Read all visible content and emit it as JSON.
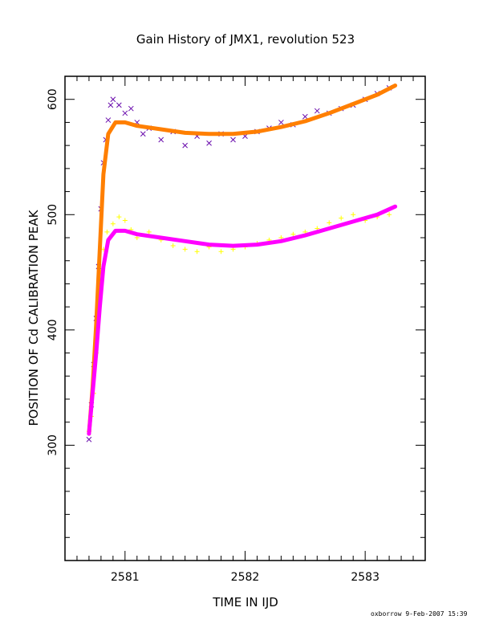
{
  "chart_data": {
    "type": "scatter",
    "title": "Gain History of JMX1, revolution 523",
    "xlabel": "TIME IN IJD",
    "ylabel": "POSITION OF Cd CALIBRATION PEAK",
    "xlim": [
      2580.5,
      2583.5
    ],
    "ylim": [
      200,
      620
    ],
    "xticks": [
      "2581",
      "2582",
      "2583"
    ],
    "yticks": [
      "300",
      "400",
      "500",
      "600"
    ],
    "grid": false,
    "legend": "none",
    "series": [
      {
        "marker": "x",
        "color": "#6a0dad",
        "points": [
          [
            2580.7,
            305
          ],
          [
            2580.72,
            335
          ],
          [
            2580.74,
            370
          ],
          [
            2580.76,
            410
          ],
          [
            2580.78,
            455
          ],
          [
            2580.8,
            505
          ],
          [
            2580.82,
            545
          ],
          [
            2580.84,
            565
          ],
          [
            2580.86,
            582
          ],
          [
            2580.88,
            595
          ],
          [
            2580.9,
            600
          ],
          [
            2580.95,
            595
          ],
          [
            2581.0,
            588
          ],
          [
            2581.05,
            592
          ],
          [
            2581.1,
            580
          ],
          [
            2581.15,
            570
          ],
          [
            2581.2,
            575
          ],
          [
            2581.3,
            565
          ],
          [
            2581.4,
            572
          ],
          [
            2581.5,
            560
          ],
          [
            2581.6,
            568
          ],
          [
            2581.7,
            562
          ],
          [
            2581.8,
            570
          ],
          [
            2581.9,
            565
          ],
          [
            2582.0,
            568
          ],
          [
            2582.1,
            572
          ],
          [
            2582.2,
            575
          ],
          [
            2582.3,
            580
          ],
          [
            2582.4,
            578
          ],
          [
            2582.5,
            585
          ],
          [
            2582.6,
            590
          ],
          [
            2582.7,
            588
          ],
          [
            2582.8,
            592
          ],
          [
            2582.9,
            595
          ],
          [
            2583.0,
            600
          ],
          [
            2583.1,
            605
          ],
          [
            2583.2,
            610
          ]
        ]
      },
      {
        "marker": "+",
        "color": "#ffff00",
        "points": [
          [
            2580.7,
            312
          ],
          [
            2580.72,
            325
          ],
          [
            2580.74,
            345
          ],
          [
            2580.76,
            380
          ],
          [
            2580.78,
            415
          ],
          [
            2580.8,
            450
          ],
          [
            2580.82,
            470
          ],
          [
            2580.85,
            485
          ],
          [
            2580.9,
            492
          ],
          [
            2580.95,
            498
          ],
          [
            2581.0,
            495
          ],
          [
            2581.05,
            487
          ],
          [
            2581.1,
            480
          ],
          [
            2581.2,
            485
          ],
          [
            2581.3,
            478
          ],
          [
            2581.4,
            473
          ],
          [
            2581.5,
            470
          ],
          [
            2581.6,
            468
          ],
          [
            2581.7,
            472
          ],
          [
            2581.8,
            468
          ],
          [
            2581.9,
            470
          ],
          [
            2582.0,
            472
          ],
          [
            2582.1,
            475
          ],
          [
            2582.2,
            478
          ],
          [
            2582.3,
            480
          ],
          [
            2582.4,
            483
          ],
          [
            2582.5,
            485
          ],
          [
            2582.6,
            488
          ],
          [
            2582.7,
            493
          ],
          [
            2582.8,
            497
          ],
          [
            2582.9,
            500
          ],
          [
            2583.0,
            495
          ],
          [
            2583.1,
            498
          ],
          [
            2583.2,
            500
          ]
        ]
      },
      {
        "marker": "line",
        "color": "#ff7f00",
        "points": [
          [
            2580.7,
            310
          ],
          [
            2580.73,
            350
          ],
          [
            2580.76,
            405
          ],
          [
            2580.79,
            470
          ],
          [
            2580.82,
            535
          ],
          [
            2580.86,
            570
          ],
          [
            2580.92,
            580
          ],
          [
            2581.0,
            580
          ],
          [
            2581.1,
            577
          ],
          [
            2581.3,
            574
          ],
          [
            2581.5,
            571
          ],
          [
            2581.7,
            570
          ],
          [
            2581.9,
            570
          ],
          [
            2582.1,
            572
          ],
          [
            2582.3,
            576
          ],
          [
            2582.5,
            581
          ],
          [
            2582.7,
            588
          ],
          [
            2582.9,
            596
          ],
          [
            2583.1,
            604
          ],
          [
            2583.25,
            612
          ]
        ]
      },
      {
        "marker": "line",
        "color": "#ff00ff",
        "points": [
          [
            2580.7,
            310
          ],
          [
            2580.73,
            345
          ],
          [
            2580.76,
            380
          ],
          [
            2580.79,
            420
          ],
          [
            2580.82,
            455
          ],
          [
            2580.86,
            478
          ],
          [
            2580.92,
            486
          ],
          [
            2581.0,
            486
          ],
          [
            2581.1,
            483
          ],
          [
            2581.3,
            480
          ],
          [
            2581.5,
            477
          ],
          [
            2581.7,
            474
          ],
          [
            2581.9,
            473
          ],
          [
            2582.1,
            474
          ],
          [
            2582.3,
            477
          ],
          [
            2582.5,
            482
          ],
          [
            2582.7,
            488
          ],
          [
            2582.9,
            494
          ],
          [
            2583.1,
            500
          ],
          [
            2583.25,
            507
          ]
        ]
      }
    ]
  },
  "footer": "oxborrow  9-Feb-2007 15:39"
}
